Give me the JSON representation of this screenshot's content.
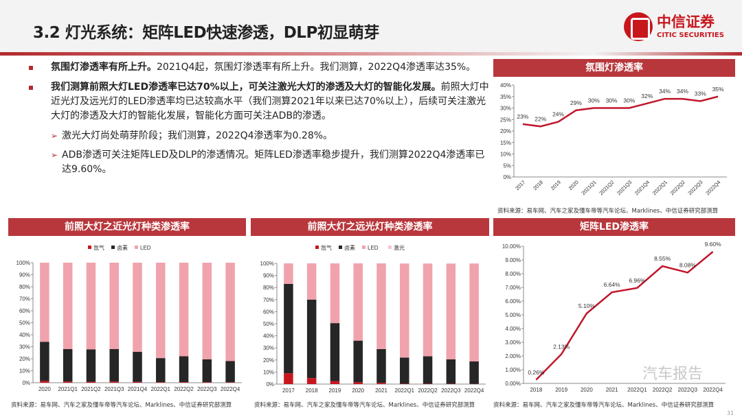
{
  "header": {
    "title": "3.2 灯光系统：矩阵LED快速渗透，DLP初显萌芽",
    "logo_cn": "中信证券",
    "logo_en": "CITIC SECURITIES"
  },
  "body": {
    "p1_bold": "氛围灯渗透率有所上升。",
    "p1_text": "2021Q4起，氛围灯渗透率有所上升。我们测算，2022Q4渗透率达35%。",
    "p2_bold": "我们测算前照大灯LED渗透率已达70%以上，可关注激光大灯的渗透及大灯的智能化发展。",
    "p2_text": "前照大灯中近光灯及远光灯的LED渗透率均已达较高水平（我们测算2021年以来已达70%以上），后续可关注激光大灯的渗透及大灯的智能化发展，智能化方面可关注ADB的渗透。",
    "s1": "激光大灯尚处萌芽阶段；我们测算，2022Q4渗透率为0.28%。",
    "s2": "ADB渗透可关注矩阵LED及DLP的渗透情况。矩阵LED渗透率稳步提升，我们测算2022Q4渗透率已达9.60%。"
  },
  "source": "资料来源：易车网、汽车之家及懂车帝等汽车论坛、Marklines、中信证券研究部测算",
  "watermark": "汽车报告",
  "page_number": "31",
  "colors": {
    "accent": "#b8373c",
    "xenon": "#c8161d",
    "halogen": "#262626",
    "led": "#f0a3ad",
    "laser": "#f5c6cc",
    "line": "#c0152a"
  },
  "chart_data": [
    {
      "type": "line",
      "title": "氛围灯渗透率",
      "categories": [
        "2017",
        "2018",
        "2019",
        "2020",
        "2021Q1",
        "2021Q2",
        "2021Q3",
        "2021Q4",
        "2022Q1",
        "2022Q2",
        "2022Q3",
        "2022Q4"
      ],
      "values": [
        23,
        22,
        24,
        29,
        30,
        30,
        30,
        32,
        34,
        34,
        33,
        35
      ],
      "labels": [
        "23%",
        "22%",
        "24%",
        "29%",
        "30%",
        "30%",
        "30%",
        "32%",
        "34%",
        "34%",
        "33%",
        "35%"
      ],
      "ylim": [
        0,
        40
      ],
      "yticks": [
        "0%",
        "5%",
        "10%",
        "15%",
        "20%",
        "25%",
        "30%",
        "35%",
        "40%"
      ]
    },
    {
      "type": "bar",
      "stacked": true,
      "title": "前照大灯之近光灯种类渗透率",
      "legend_position": "top",
      "categories": [
        "2020",
        "2021Q1",
        "2021Q2",
        "2021Q3",
        "2021Q4",
        "2022Q1",
        "2022Q2",
        "2022Q3",
        "2022Q4"
      ],
      "series": [
        {
          "name": "氙气",
          "values": [
            1.5,
            1,
            0.8,
            1,
            0.7,
            0.5,
            0.5,
            0.5,
            0.4
          ]
        },
        {
          "name": "卤素",
          "values": [
            32.5,
            27,
            27,
            27,
            25,
            20,
            21.5,
            19,
            17.6
          ]
        },
        {
          "name": "LED",
          "values": [
            66,
            72,
            72.2,
            72,
            74.3,
            79.5,
            78,
            80.5,
            82
          ]
        }
      ],
      "ylim": [
        0,
        100
      ],
      "yticks": [
        "0%",
        "10%",
        "20%",
        "30%",
        "40%",
        "50%",
        "60%",
        "70%",
        "80%",
        "90%",
        "100%"
      ]
    },
    {
      "type": "bar",
      "stacked": true,
      "title": "前照大灯之远光灯种类渗透率",
      "legend_position": "top",
      "categories": [
        "2017",
        "2018",
        "2019",
        "2020",
        "2021",
        "2022Q1",
        "2022Q2",
        "2022Q3",
        "2022Q4"
      ],
      "series": [
        {
          "name": "氙气",
          "values": [
            9,
            5,
            2.5,
            1.5,
            1,
            0.3,
            0.3,
            0.3,
            0.2
          ]
        },
        {
          "name": "卤素",
          "values": [
            74,
            65,
            48,
            34.5,
            28,
            21.7,
            22.7,
            20.2,
            18.6
          ]
        },
        {
          "name": "LED",
          "values": [
            17,
            30,
            49.5,
            64,
            71,
            77.8,
            76.8,
            79.3,
            80.92
          ]
        },
        {
          "name": "激光",
          "values": [
            0,
            0,
            0,
            0,
            0,
            0.2,
            0.2,
            0.2,
            0.28
          ]
        }
      ],
      "ylim": [
        0,
        100
      ],
      "yticks": [
        "0%",
        "10%",
        "20%",
        "30%",
        "40%",
        "50%",
        "60%",
        "70%",
        "80%",
        "90%",
        "100%"
      ]
    },
    {
      "type": "line",
      "title": "矩阵LED渗透率",
      "categories": [
        "2018",
        "2019",
        "2020",
        "2021",
        "2022Q1",
        "2022Q2",
        "2022Q3",
        "2022Q4"
      ],
      "values": [
        0.26,
        2.13,
        5.1,
        6.64,
        6.96,
        8.55,
        8.08,
        9.6
      ],
      "labels": [
        "0.26%",
        "2.13%",
        "5.10%",
        "6.64%",
        "6.96%",
        "8.55%",
        "8.08%",
        "9.60%"
      ],
      "ylim": [
        0,
        10
      ],
      "yticks": [
        "0.00%",
        "1.00%",
        "2.00%",
        "3.00%",
        "4.00%",
        "5.00%",
        "6.00%",
        "7.00%",
        "8.00%",
        "9.00%",
        "10.00%"
      ]
    }
  ]
}
